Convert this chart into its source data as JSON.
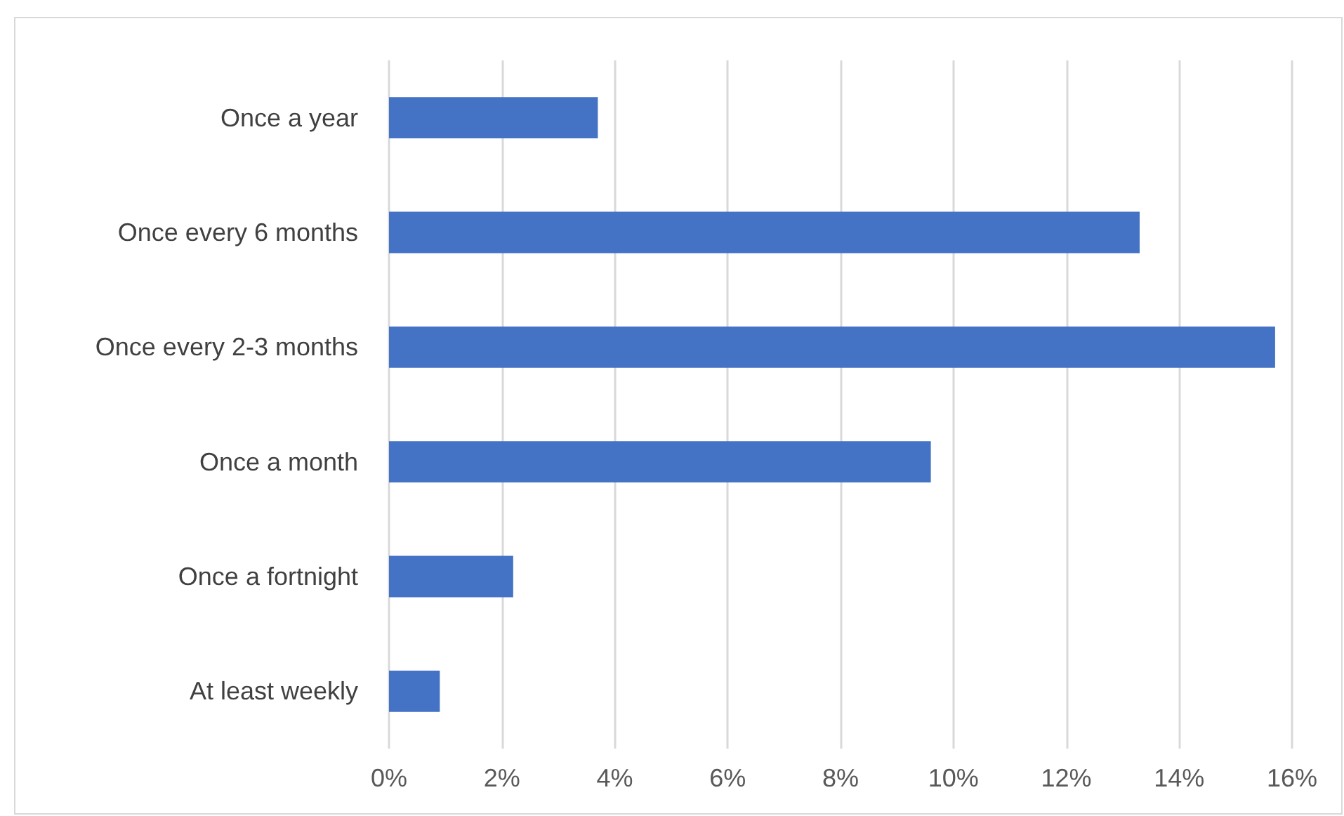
{
  "chart_data": {
    "type": "bar",
    "orientation": "horizontal",
    "categories": [
      "Once a year",
      "Once every 6 months",
      "Once every 2-3 months",
      "Once a month",
      "Once a fortnight",
      "At least weekly"
    ],
    "values": [
      3.7,
      13.3,
      15.7,
      9.6,
      2.2,
      0.9
    ],
    "color": "#4472c4",
    "xlim": [
      0,
      16
    ],
    "xticks": [
      {
        "value": 0,
        "label": "0%"
      },
      {
        "value": 2,
        "label": "2%"
      },
      {
        "value": 4,
        "label": "4%"
      },
      {
        "value": 6,
        "label": "6%"
      },
      {
        "value": 8,
        "label": "8%"
      },
      {
        "value": 10,
        "label": "10%"
      },
      {
        "value": 12,
        "label": "12%"
      },
      {
        "value": 14,
        "label": "14%"
      },
      {
        "value": 16,
        "label": "16%"
      }
    ],
    "grid": "x"
  }
}
